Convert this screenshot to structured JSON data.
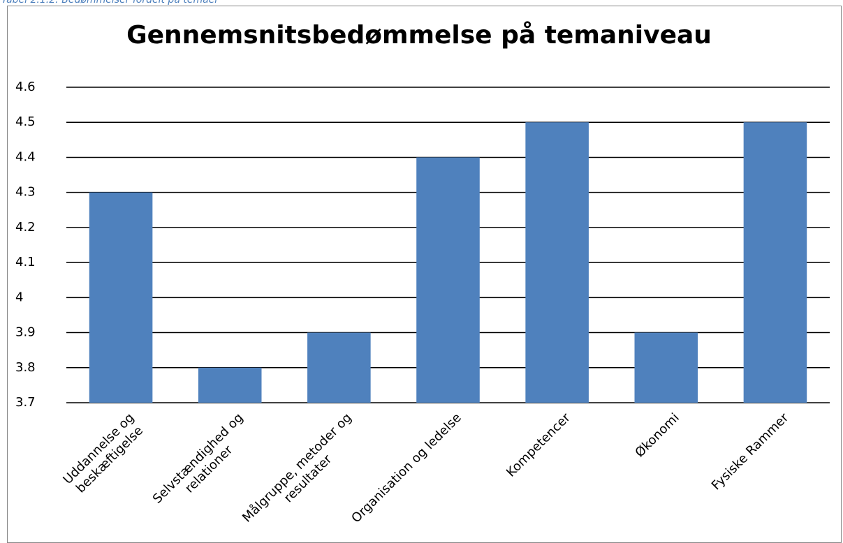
{
  "caption": "Tabel 2.1.2: Bedømmelser fordelt på temaer",
  "chart_data": {
    "type": "bar",
    "title": "Gennemsnitsbedømmelse på temaniveau",
    "categories": [
      "Uddannelse og\nbeskæftigelse",
      "Selvstændighed og\nrelationer",
      "Målgruppe, metoder og\nresultater",
      "Organisation og ledelse",
      "Kompetencer",
      "Økonomi",
      "Fysiske Rammer"
    ],
    "values": [
      4.3,
      3.8,
      3.9,
      4.4,
      4.5,
      3.9,
      4.5
    ],
    "color": "#4f81bd",
    "ylim": [
      3.7,
      4.6
    ],
    "yticks": [
      3.7,
      3.8,
      3.9,
      4,
      4.1,
      4.2,
      4.3,
      4.4,
      4.5,
      4.6
    ],
    "grid": true
  }
}
